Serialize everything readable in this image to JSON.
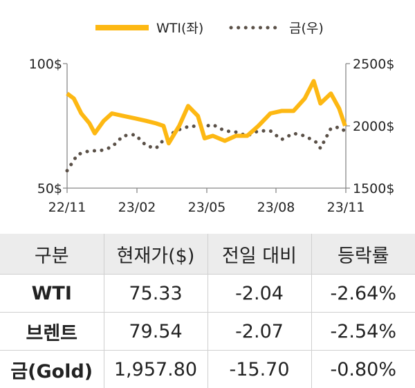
{
  "chart_data": {
    "type": "line",
    "legend": {
      "placement": "top-center",
      "items": [
        "WTI(좌)",
        "금(우)"
      ]
    },
    "x_ticks": [
      "22/11",
      "23/02",
      "23/05",
      "23/08",
      "23/11"
    ],
    "x_range": [
      "2022-11",
      "2023-11"
    ],
    "y_left": {
      "ticks": [
        "100$",
        "50$"
      ],
      "range": [
        50,
        100
      ]
    },
    "y_right": {
      "ticks": [
        "2500$",
        "2000$",
        "1500$"
      ],
      "range": [
        1500,
        2500
      ]
    },
    "grid": false,
    "series": [
      {
        "name": "WTI(좌)",
        "axis": "left",
        "color": "#FDB813",
        "style": "solid",
        "x": [
          "2022-11-01",
          "2022-11-10",
          "2022-11-20",
          "2022-12-01",
          "2022-12-08",
          "2022-12-20",
          "2022-12-31",
          "2023-01-15",
          "2023-01-31",
          "2023-02-15",
          "2023-02-28",
          "2023-03-10",
          "2023-03-17",
          "2023-03-31",
          "2023-04-12",
          "2023-04-25",
          "2023-05-04",
          "2023-05-15",
          "2023-05-31",
          "2023-06-15",
          "2023-06-30",
          "2023-07-15",
          "2023-07-31",
          "2023-08-15",
          "2023-08-31",
          "2023-09-15",
          "2023-09-27",
          "2023-10-06",
          "2023-10-20",
          "2023-10-31",
          "2023-11-08"
        ],
        "values": [
          88,
          86,
          80,
          76,
          72,
          77,
          80,
          79,
          78,
          77,
          76,
          75,
          68,
          75,
          83,
          79,
          70,
          71,
          69,
          71,
          71,
          75,
          80,
          81,
          81,
          86,
          93,
          84,
          88,
          82,
          75
        ]
      },
      {
        "name": "금(우)",
        "axis": "right",
        "color": "#5a5047",
        "style": "dotted",
        "x": [
          "2022-11-01",
          "2022-11-15",
          "2022-12-01",
          "2022-12-15",
          "2022-12-31",
          "2023-01-15",
          "2023-01-31",
          "2023-02-15",
          "2023-02-28",
          "2023-03-15",
          "2023-03-31",
          "2023-04-15",
          "2023-04-30",
          "2023-05-15",
          "2023-05-31",
          "2023-06-15",
          "2023-06-30",
          "2023-07-15",
          "2023-07-31",
          "2023-08-15",
          "2023-08-31",
          "2023-09-15",
          "2023-09-30",
          "2023-10-06",
          "2023-10-20",
          "2023-10-31",
          "2023-11-08"
        ],
        "values": [
          1640,
          1770,
          1800,
          1800,
          1830,
          1920,
          1930,
          1840,
          1820,
          1920,
          1970,
          2000,
          1990,
          2010,
          1960,
          1950,
          1920,
          1960,
          1960,
          1890,
          1940,
          1920,
          1870,
          1820,
          1980,
          1990,
          1957.8
        ]
      }
    ]
  },
  "table": {
    "headers": [
      "구분",
      "현재가($)",
      "전일 대비",
      "등락률"
    ],
    "rows": [
      [
        "WTI",
        "75.33",
        "-2.04",
        "-2.64%"
      ],
      [
        "브렌트",
        "79.54",
        "-2.07",
        "-2.54%"
      ],
      [
        "금(Gold)",
        "1,957.80",
        "-15.70",
        "-0.80%"
      ]
    ]
  }
}
